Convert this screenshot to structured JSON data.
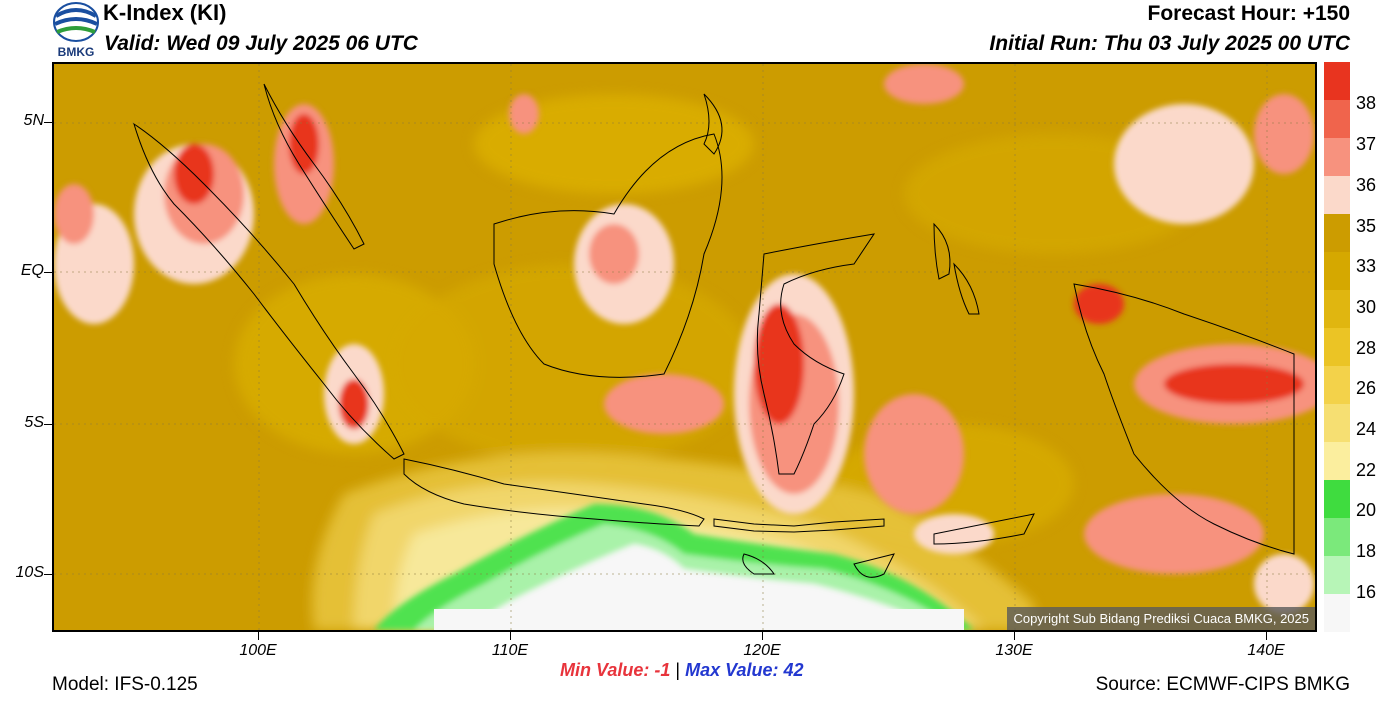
{
  "header": {
    "title": "K-Index (KI)",
    "valid": "Valid: Wed 09 July 2025 06 UTC",
    "forecast_hour": "Forecast Hour: +150",
    "initial_run": "Initial Run: Thu 03 July 2025 00 UTC",
    "logo_text": "BMKG"
  },
  "map": {
    "lat_labels": [
      "5N",
      "EQ",
      "5S",
      "10S"
    ],
    "lon_labels": [
      "100E",
      "110E",
      "120E",
      "130E",
      "140E"
    ],
    "copyright": "Copyright Sub Bidang Prediksi Cuaca BMKG, 2025"
  },
  "colorbar": {
    "labels": [
      "38",
      "37",
      "36",
      "35",
      "33",
      "30",
      "28",
      "26",
      "24",
      "22",
      "20",
      "18",
      "16"
    ],
    "colors": [
      "#e8341f",
      "#f0644c",
      "#f7927e",
      "#fbd9ca",
      "#cc9c00",
      "#d5a800",
      "#e0b610",
      "#ebc425",
      "#f3d24a",
      "#f6df72",
      "#fbee9e",
      "#3fdc3f",
      "#7be97b",
      "#b7f5b7",
      "#f7f7f7"
    ]
  },
  "footer": {
    "min_label": "Min Value:",
    "min_value": "-1",
    "max_label": "Max Value:",
    "max_value": "42",
    "separator": "|",
    "model": "Model: IFS-0.125",
    "source": "Source: ECMWF-CIPS BMKG"
  }
}
